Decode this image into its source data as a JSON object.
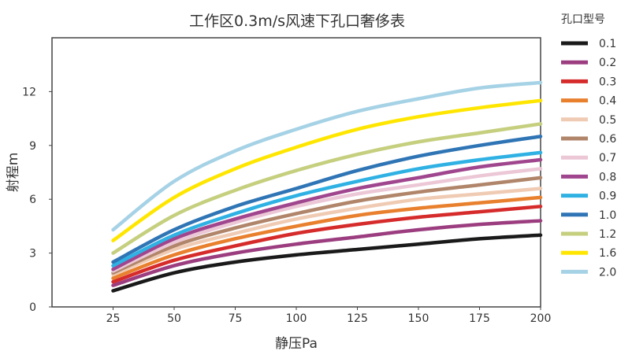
{
  "chart_data": {
    "type": "line",
    "title": "工作区0.3m/s风速下孔口奢侈表",
    "xlabel": "静压Pa",
    "ylabel": "射程m",
    "xlim": [
      0,
      200
    ],
    "ylim": [
      0,
      15
    ],
    "xticks": [
      25,
      50,
      75,
      100,
      125,
      150,
      175,
      200
    ],
    "yticks": [
      0,
      3,
      6,
      9,
      12
    ],
    "grid": false,
    "legend_title": "孔口型号",
    "legend_position": "right",
    "x": [
      25,
      50,
      75,
      100,
      125,
      150,
      175,
      200
    ],
    "series": [
      {
        "name": "0.1",
        "color": "#1a1a1a",
        "values": [
          0.9,
          1.9,
          2.5,
          2.9,
          3.2,
          3.5,
          3.8,
          4.0
        ]
      },
      {
        "name": "0.2",
        "color": "#9b3d7f",
        "values": [
          1.2,
          2.3,
          3.0,
          3.5,
          3.9,
          4.3,
          4.6,
          4.8
        ]
      },
      {
        "name": "0.3",
        "color": "#d62b2b",
        "values": [
          1.4,
          2.6,
          3.4,
          4.1,
          4.6,
          5.0,
          5.3,
          5.6
        ]
      },
      {
        "name": "0.4",
        "color": "#e8802e",
        "values": [
          1.6,
          2.9,
          3.8,
          4.5,
          5.1,
          5.5,
          5.8,
          6.1
        ]
      },
      {
        "name": "0.5",
        "color": "#f0cbb4",
        "values": [
          1.8,
          3.2,
          4.1,
          4.9,
          5.5,
          6.0,
          6.3,
          6.6
        ]
      },
      {
        "name": "0.6",
        "color": "#b0856a",
        "values": [
          1.9,
          3.4,
          4.4,
          5.2,
          5.9,
          6.4,
          6.8,
          7.2
        ]
      },
      {
        "name": "0.7",
        "color": "#ecc7d6",
        "values": [
          2.0,
          3.6,
          4.7,
          5.6,
          6.3,
          6.8,
          7.3,
          7.7
        ]
      },
      {
        "name": "0.8",
        "color": "#a0468e",
        "values": [
          2.1,
          3.8,
          4.9,
          5.8,
          6.6,
          7.2,
          7.8,
          8.2
        ]
      },
      {
        "name": "0.9",
        "color": "#2fb1e3",
        "values": [
          2.3,
          4.0,
          5.2,
          6.2,
          7.0,
          7.7,
          8.2,
          8.6
        ]
      },
      {
        "name": "1.0",
        "color": "#2f75b5",
        "values": [
          2.5,
          4.3,
          5.6,
          6.6,
          7.6,
          8.4,
          9.0,
          9.5
        ]
      },
      {
        "name": "1.2",
        "color": "#c5cf7e",
        "values": [
          3.0,
          5.1,
          6.5,
          7.6,
          8.5,
          9.2,
          9.7,
          10.2
        ]
      },
      {
        "name": "1.6",
        "color": "#ffe600",
        "values": [
          3.7,
          6.1,
          7.7,
          8.9,
          9.9,
          10.6,
          11.1,
          11.5
        ]
      },
      {
        "name": "2.0",
        "color": "#a6d2e6",
        "values": [
          4.3,
          7.0,
          8.7,
          9.9,
          10.9,
          11.6,
          12.2,
          12.5
        ]
      }
    ]
  }
}
